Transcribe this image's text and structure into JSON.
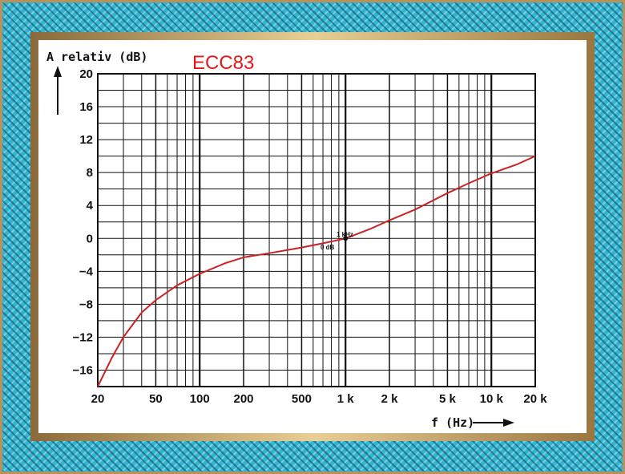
{
  "colors": {
    "curve": "#cc2222",
    "title": "#e01a1a",
    "grid": "#111111",
    "frame": "#35b4cf"
  },
  "chart_data": {
    "type": "line",
    "title": "ECC83",
    "ylabel": "A relativ (dB)",
    "xlabel": "f (Hz)",
    "xscale": "log",
    "xlim": [
      20,
      20000
    ],
    "ylim": [
      -18,
      20
    ],
    "grid": true,
    "x_ticks": [
      20,
      50,
      100,
      200,
      500,
      1000,
      2000,
      5000,
      10000,
      20000
    ],
    "x_tick_labels": [
      "20",
      "50",
      "100",
      "200",
      "500",
      "1 k",
      "2 k",
      "5 k",
      "10 k",
      "20 k"
    ],
    "y_ticks": [
      20,
      16,
      12,
      8,
      4,
      0,
      -4,
      -8,
      -12,
      -16
    ],
    "y_tick_labels": [
      "20",
      "16",
      "12",
      "8",
      "4",
      "0",
      "−4",
      "−8",
      "−12",
      "−16"
    ],
    "series": [
      {
        "x": [
          20,
          25,
          30,
          40,
          50,
          70,
          100,
          150,
          200,
          300,
          500,
          700,
          1000,
          1500,
          2000,
          3000,
          5000,
          7000,
          10000,
          15000,
          20000
        ],
        "y": [
          -18,
          -14.5,
          -12,
          -9,
          -7.5,
          -5.7,
          -4.3,
          -3.0,
          -2.3,
          -1.8,
          -1.1,
          -0.6,
          0,
          1.2,
          2.2,
          3.5,
          5.5,
          6.7,
          7.9,
          9.0,
          10.0
        ]
      }
    ],
    "annotations": [
      {
        "text": "1 kHz",
        "x": 1000,
        "y": 0
      },
      {
        "text": "0 dB",
        "x": 1000,
        "y": 0
      }
    ]
  }
}
